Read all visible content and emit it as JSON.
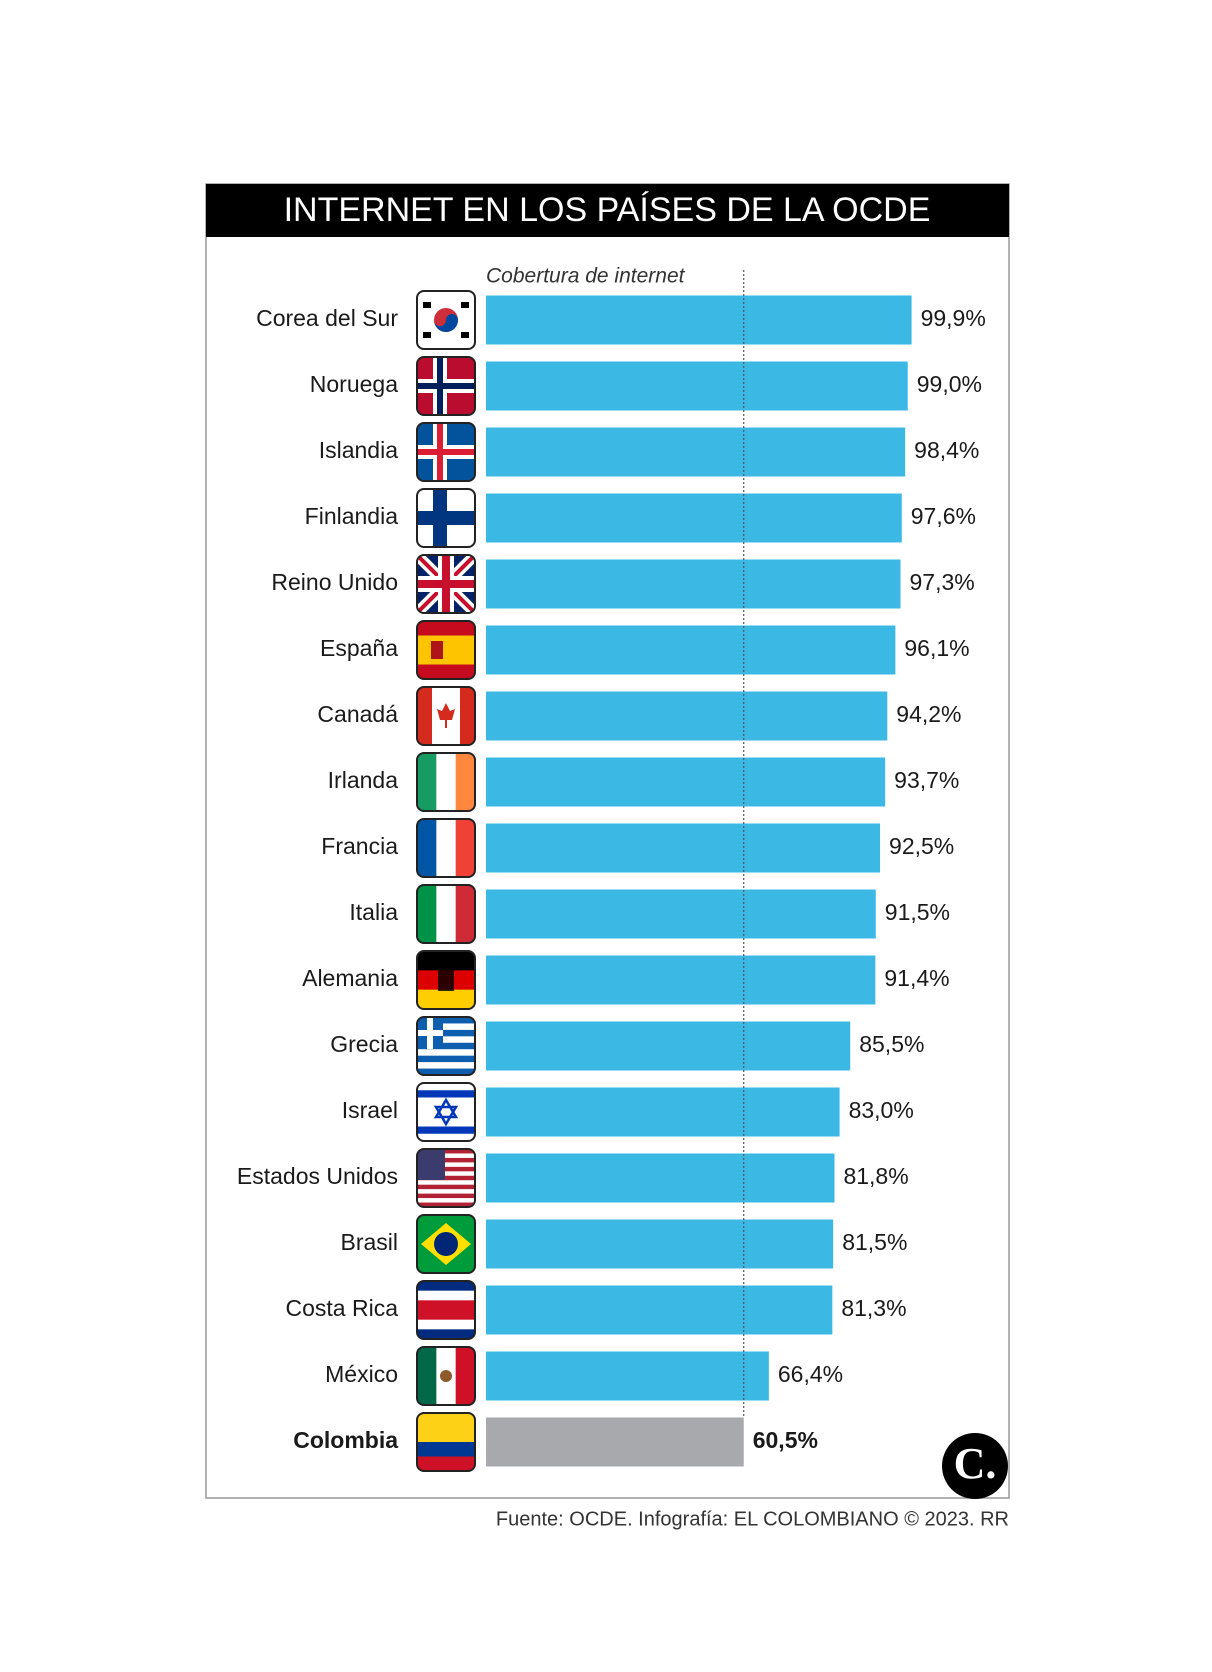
{
  "chart_data": {
    "type": "bar",
    "orientation": "horizontal",
    "title": "INTERNET EN LOS PAÍSES DE LA OCDE",
    "subtitle": "Cobertura de internet",
    "categories": [
      "Corea del Sur",
      "Noruega",
      "Islandia",
      "Finlandia",
      "Reino Unido",
      "España",
      "Canadá",
      "Irlanda",
      "Francia",
      "Italia",
      "Alemania",
      "Grecia",
      "Israel",
      "Estados Unidos",
      "Brasil",
      "Costa Rica",
      "México",
      "Colombia"
    ],
    "values": [
      99.9,
      99.0,
      98.4,
      97.6,
      97.3,
      96.1,
      94.2,
      93.7,
      92.5,
      91.5,
      91.4,
      85.5,
      83.0,
      81.8,
      81.5,
      81.3,
      66.4,
      60.5
    ],
    "value_labels": [
      "99,9%",
      "99,0%",
      "98,4%",
      "97,6%",
      "97,3%",
      "96,1%",
      "94,2%",
      "93,7%",
      "92,5%",
      "91,5%",
      "91,4%",
      "85,5%",
      "83,0%",
      "81,8%",
      "81,5%",
      "81,3%",
      "66,4%",
      "60,5%"
    ],
    "colors": [
      "#3bb9e4",
      "#3bb9e4",
      "#3bb9e4",
      "#3bb9e4",
      "#3bb9e4",
      "#3bb9e4",
      "#3bb9e4",
      "#3bb9e4",
      "#3bb9e4",
      "#3bb9e4",
      "#3bb9e4",
      "#3bb9e4",
      "#3bb9e4",
      "#3bb9e4",
      "#3bb9e4",
      "#3bb9e4",
      "#3bb9e4",
      "#a7a9ac"
    ],
    "highlight_index": 17,
    "xlim": [
      0,
      100
    ],
    "source": "Fuente: OCDE. Infografía: EL COLOMBIANO © 2023. RR"
  }
}
